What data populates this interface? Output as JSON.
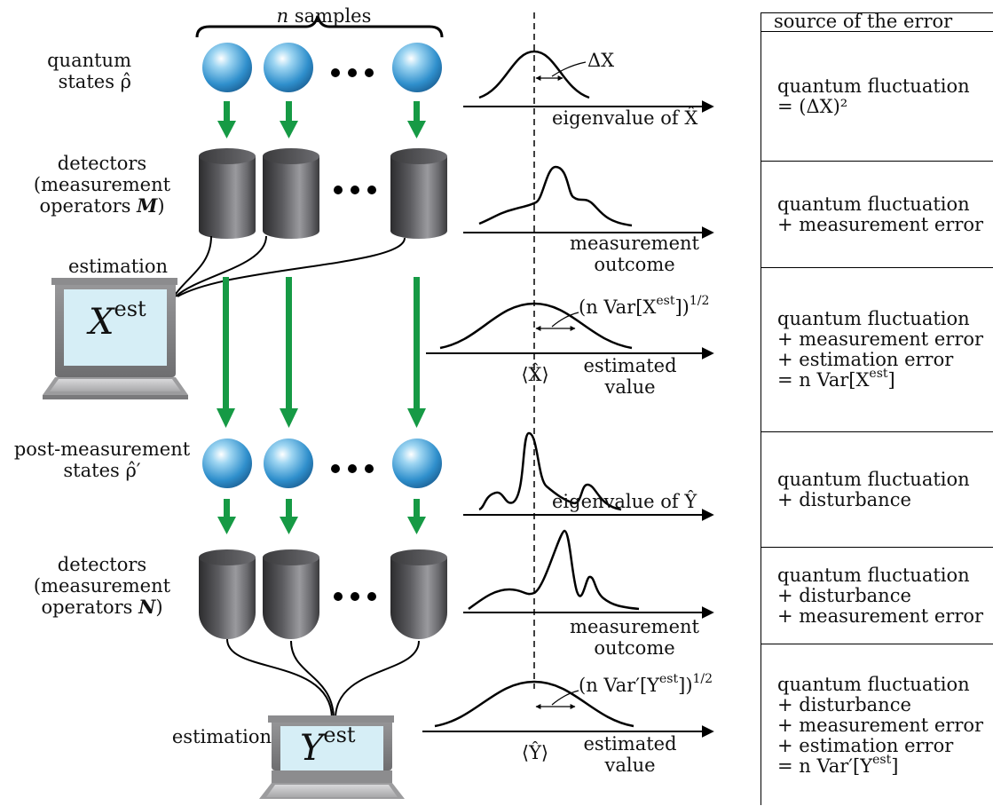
{
  "header": {
    "samples_label": "n samples"
  },
  "rows": {
    "quantum_states": {
      "line1": "quantum",
      "line2": "states ρ̂"
    },
    "detectors_m": {
      "line1": "detectors",
      "line2": "(measurement",
      "line3": "operators ",
      "operator": "M",
      "close": ")"
    },
    "estimation_x": {
      "label": "estimation",
      "screen_var": "X",
      "screen_sup": "est"
    },
    "post_states": {
      "line1": "post-measurement",
      "line2": "states ρ̂′"
    },
    "detectors_n": {
      "line1": "detectors",
      "line2": "(measurement",
      "line3": "operators ",
      "operator": "N",
      "close": ")"
    },
    "estimation_y": {
      "label": "estimation",
      "screen_var": "Y",
      "screen_sup": "est"
    }
  },
  "plots": {
    "p1": {
      "annotation": "ΔX",
      "axis": "eigenvalue of X̂"
    },
    "p2": {
      "axis_line1": "measurement",
      "axis_line2": "outcome"
    },
    "p3": {
      "annotation_pre": "(n Var[X",
      "annotation_sup1": "est",
      "annotation_mid": "])",
      "annotation_sup2": "1/2",
      "mean": "⟨X̂⟩",
      "axis_line1": "estimated",
      "axis_line2": "value"
    },
    "p4": {
      "axis": "eigenvalue of Ŷ"
    },
    "p5": {
      "axis_line1": "measurement",
      "axis_line2": "outcome"
    },
    "p6": {
      "annotation_pre": "(n Var′[Y",
      "annotation_sup1": "est",
      "annotation_mid": "])",
      "annotation_sup2": "1/2",
      "mean": "⟨Ŷ⟩",
      "axis_line1": "estimated",
      "axis_line2": "value"
    }
  },
  "table": {
    "header": "source of the error",
    "cells": [
      {
        "lines": [
          "quantum fluctuation",
          "= (ΔX)²"
        ]
      },
      {
        "lines": [
          "quantum fluctuation",
          "+ measurement error"
        ]
      },
      {
        "lines": [
          "quantum fluctuation",
          "+ measurement error",
          "+ estimation error"
        ],
        "last_pre": "= n Var[X",
        "last_sup": "est",
        "last_post": "]"
      },
      {
        "lines": [
          "quantum fluctuation",
          "+ disturbance"
        ]
      },
      {
        "lines": [
          "quantum fluctuation",
          "+ disturbance",
          "+ measurement error"
        ]
      },
      {
        "lines": [
          "quantum fluctuation",
          "+ disturbance",
          "+ measurement error",
          "+ estimation error"
        ],
        "last_pre": "= n Var′[Y",
        "last_sup": "est",
        "last_post": "]"
      }
    ]
  },
  "colors": {
    "arrow": "#169a45",
    "ball": "#3a9fd8",
    "detector": "#4a4a4c",
    "screen": "#d6eef6",
    "laptop": "#8a8a8c"
  }
}
